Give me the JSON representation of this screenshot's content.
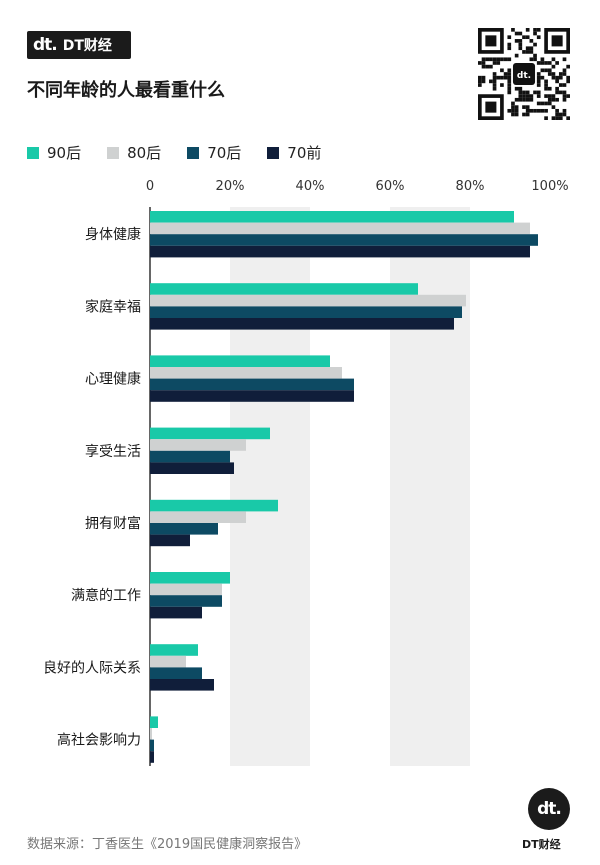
{
  "brand": {
    "mark": "dt.",
    "name": "DT财经"
  },
  "header": {
    "title": "不同年龄的人最看重什么"
  },
  "colors": {
    "s90": "#19c9a8",
    "s80": "#cfd1d1",
    "s70": "#0d4a63",
    "s70pre": "#101e3a",
    "band": "#efefef"
  },
  "chart_data": {
    "type": "bar",
    "orientation": "horizontal",
    "title": "不同年龄的人最看重什么",
    "xlim": [
      0,
      100
    ],
    "x_ticks": [
      "0",
      "20%",
      "40%",
      "60%",
      "80%",
      "100%"
    ],
    "legend_position": "top-left",
    "categories": [
      "身体健康",
      "家庭幸福",
      "心理健康",
      "享受生活",
      "拥有财富",
      "满意的工作",
      "良好的人际关系",
      "高社会影响力"
    ],
    "series": [
      {
        "name": "90后",
        "values": [
          91,
          67,
          45,
          30,
          32,
          20,
          12,
          2
        ]
      },
      {
        "name": "80后",
        "values": [
          95,
          79,
          48,
          24,
          24,
          18,
          9,
          0.5
        ]
      },
      {
        "name": "70后",
        "values": [
          97,
          78,
          51,
          20,
          17,
          18,
          13,
          1
        ]
      },
      {
        "name": "70前",
        "values": [
          95,
          76,
          51,
          21,
          10,
          13,
          16,
          1
        ]
      }
    ]
  },
  "footer": {
    "source": "数据来源：丁香医生《2019国民健康洞察报告》",
    "brand": "DT财经",
    "logo_mark": "dt."
  }
}
